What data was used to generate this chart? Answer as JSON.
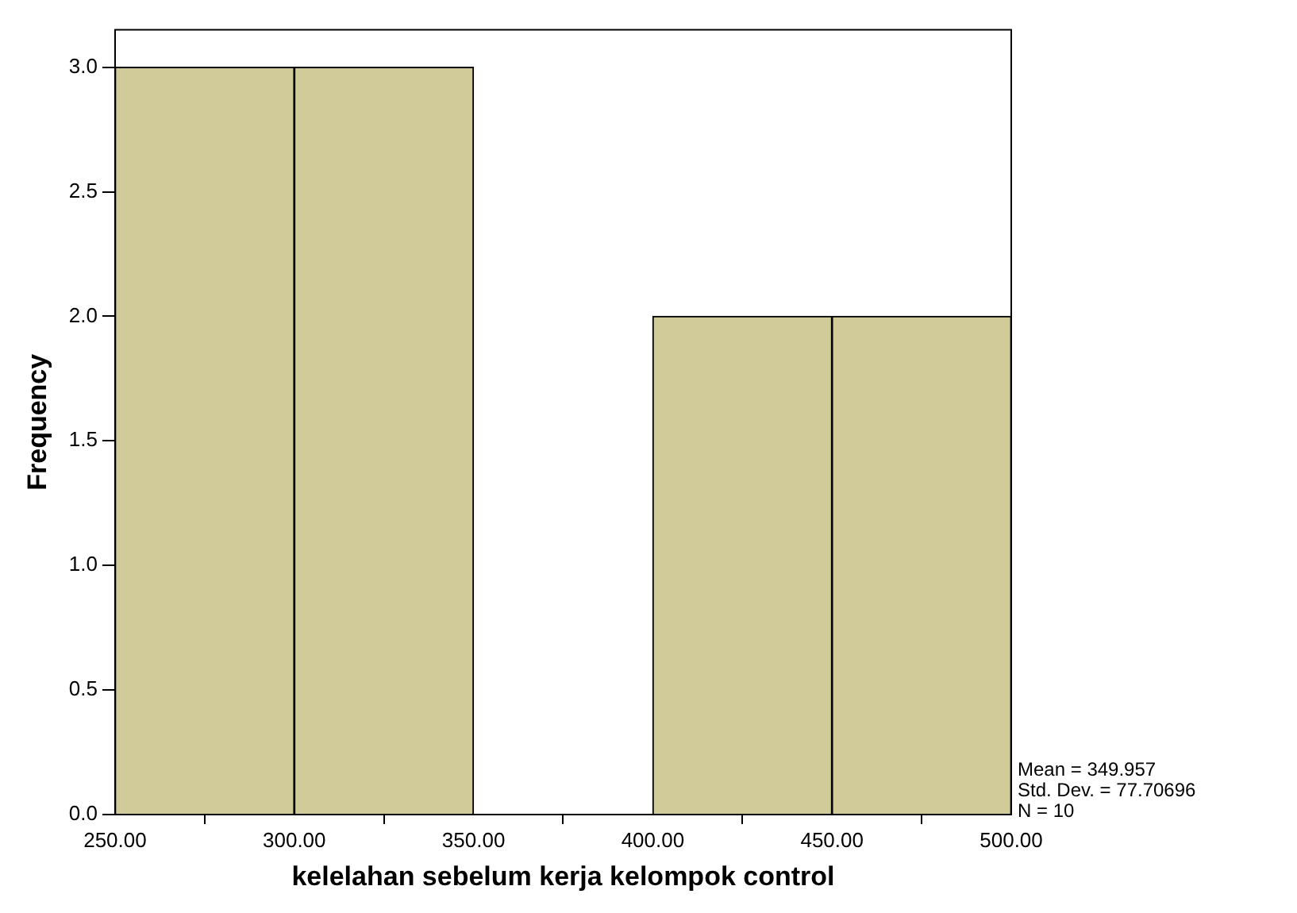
{
  "chart_data": {
    "type": "histogram",
    "xlabel": "kelelahan sebelum kerja kelompok control",
    "ylabel": "Frequency",
    "bins": [
      250,
      300,
      350,
      400,
      450,
      500
    ],
    "values": [
      3,
      3,
      0,
      2,
      2
    ],
    "color": "#d0cb98",
    "xlim": [
      250,
      500
    ],
    "xticks": [
      {
        "value": 250,
        "label": "250.00"
      },
      {
        "value": 300,
        "label": "300.00"
      },
      {
        "value": 350,
        "label": "350.00"
      },
      {
        "value": 400,
        "label": "400.00"
      },
      {
        "value": 450,
        "label": "450.00"
      },
      {
        "value": 500,
        "label": "500.00"
      }
    ],
    "ylim": [
      0,
      3.15
    ],
    "yticks": [
      {
        "value": 0,
        "label": "0.0"
      },
      {
        "value": 0.5,
        "label": "0.5"
      },
      {
        "value": 1,
        "label": "1.0"
      },
      {
        "value": 1.5,
        "label": "1.5"
      },
      {
        "value": 2,
        "label": "2.0"
      },
      {
        "value": 2.5,
        "label": "2.5"
      },
      {
        "value": 3,
        "label": "3.0"
      }
    ],
    "grid": false,
    "annotations": [
      "Mean = 349.957",
      "Std. Dev. = 77.70696",
      "N = 10"
    ]
  }
}
